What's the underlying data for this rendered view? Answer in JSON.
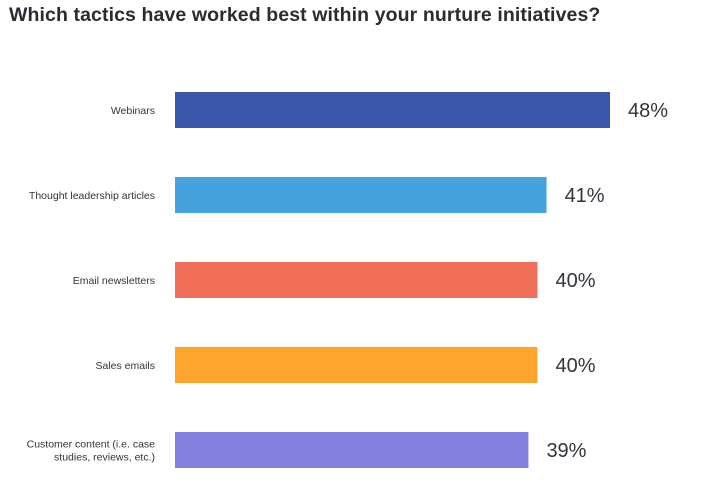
{
  "chart_data": {
    "type": "bar",
    "orientation": "horizontal",
    "title": "Which tactics have worked best within your nurture initiatives?",
    "categories": [
      [
        "Webinars"
      ],
      [
        "Thought leadership articles"
      ],
      [
        "Email newsletters"
      ],
      [
        "Sales emails"
      ],
      [
        "Customer content (i.e. case",
        "studies, reviews, etc.)"
      ]
    ],
    "values": [
      48,
      41,
      40,
      40,
      39
    ],
    "value_labels": [
      "48%",
      "41%",
      "40%",
      "40%",
      "39%"
    ],
    "unit": "%",
    "xlim": [
      0,
      48
    ],
    "colors": [
      "#3a56a8",
      "#45a2dc",
      "#f16f56",
      "#ffa52e",
      "#8480e0"
    ],
    "grid": false,
    "legend": "none"
  }
}
